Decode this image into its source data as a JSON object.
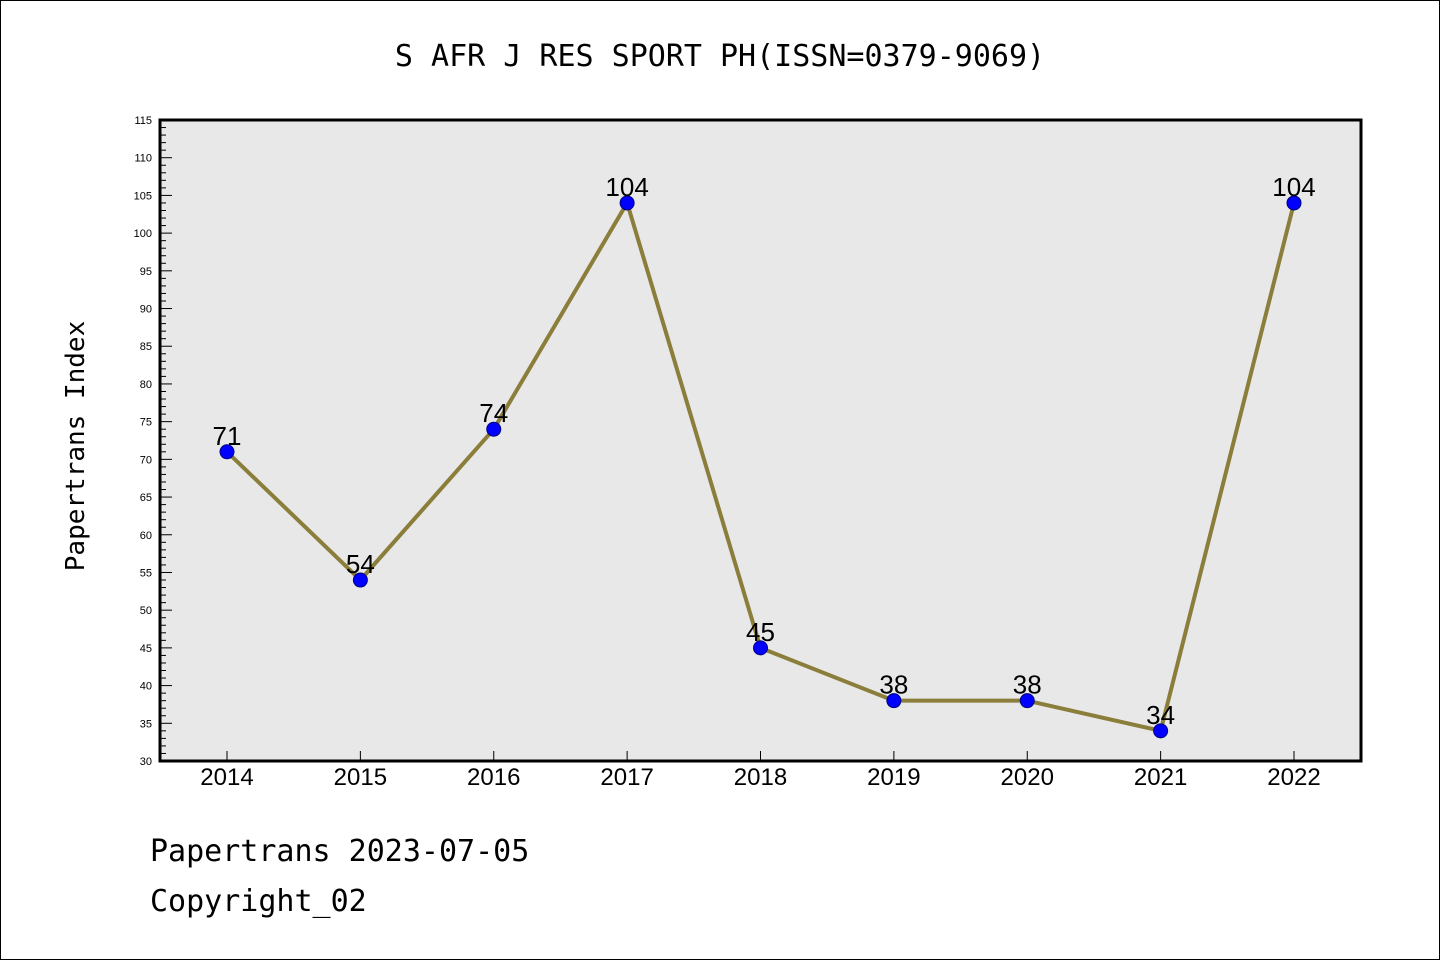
{
  "chart_data": {
    "type": "line",
    "title": "S AFR J RES SPORT PH(ISSN=0379-9069)",
    "xlabel": "",
    "ylabel": "Papertrans Index",
    "categories": [
      "2014",
      "2015",
      "2016",
      "2017",
      "2018",
      "2019",
      "2020",
      "2021",
      "2022"
    ],
    "values": [
      71,
      54,
      74,
      104,
      45,
      38,
      38,
      34,
      104
    ],
    "data_labels": [
      "71",
      "54",
      "74",
      "104",
      "45",
      "38",
      "38",
      "34",
      "104"
    ],
    "ylim": [
      30,
      115
    ],
    "y_major_step": 5,
    "y_minor_step": 1,
    "yticks": [
      "30",
      "35",
      "40",
      "45",
      "50",
      "55",
      "60",
      "65",
      "70",
      "75",
      "80",
      "85",
      "90",
      "95",
      "100",
      "105",
      "110",
      "115"
    ],
    "grid": false,
    "legend": "none",
    "colors": {
      "plot_background": "#e8e8e8",
      "line": "#8b7d3a",
      "marker": "#0000ff",
      "marker_edge": "#000080"
    }
  },
  "footer": {
    "date_line": "Papertrans 2023-07-05",
    "copyright_line": "Copyright_02"
  }
}
